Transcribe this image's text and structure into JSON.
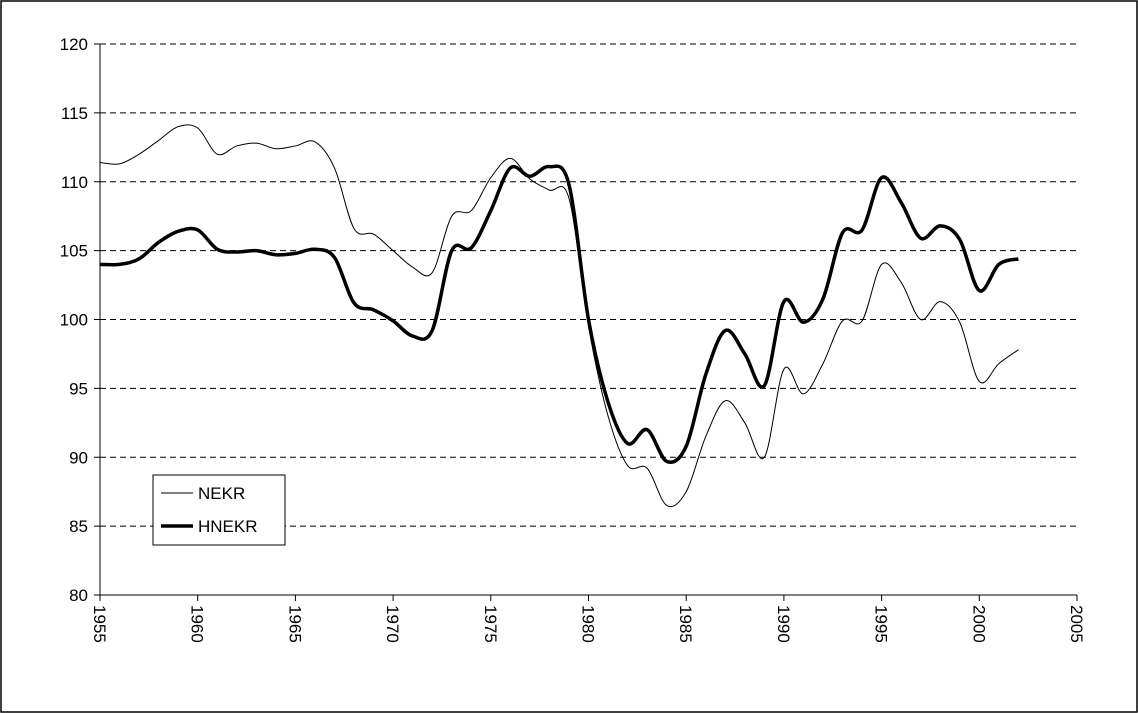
{
  "chart_data": {
    "type": "line",
    "x": [
      1955,
      1956,
      1957,
      1958,
      1959,
      1960,
      1961,
      1962,
      1963,
      1964,
      1965,
      1966,
      1967,
      1968,
      1969,
      1970,
      1971,
      1972,
      1973,
      1974,
      1975,
      1976,
      1977,
      1978,
      1979,
      1980,
      1981,
      1982,
      1983,
      1984,
      1985,
      1986,
      1987,
      1988,
      1989,
      1990,
      1991,
      1992,
      1993,
      1994,
      1995,
      1996,
      1997,
      1998,
      1999,
      2000,
      2001,
      2002
    ],
    "series": [
      {
        "name": "NEKR",
        "color": "#000000",
        "width": 1,
        "values": [
          111.4,
          111.3,
          112.0,
          113.0,
          114.0,
          113.9,
          112.0,
          112.6,
          112.8,
          112.4,
          112.6,
          112.9,
          111.0,
          106.6,
          106.2,
          105.0,
          103.8,
          103.4,
          107.5,
          107.9,
          110.3,
          111.7,
          110.2,
          109.4,
          108.8,
          99.5,
          93.0,
          89.4,
          89.2,
          86.5,
          87.5,
          91.5,
          94.1,
          92.5,
          90.0,
          96.4,
          94.6,
          96.8,
          99.9,
          99.9,
          104.0,
          102.7,
          100.0,
          101.3,
          99.8,
          95.5,
          96.8,
          97.8
        ]
      },
      {
        "name": "HNEKR",
        "color": "#000000",
        "width": 3.5,
        "values": [
          104.0,
          104.0,
          104.4,
          105.6,
          106.4,
          106.5,
          105.1,
          104.9,
          105.0,
          104.7,
          104.8,
          105.1,
          104.5,
          101.2,
          100.7,
          99.9,
          98.8,
          99.2,
          105.0,
          105.2,
          107.9,
          111.0,
          110.4,
          111.1,
          109.8,
          100.0,
          94.0,
          91.0,
          92.0,
          89.7,
          90.8,
          96.0,
          99.2,
          97.5,
          95.2,
          101.3,
          99.8,
          101.5,
          106.3,
          106.5,
          110.3,
          108.5,
          105.9,
          106.8,
          105.8,
          102.1,
          104.0,
          104.4
        ]
      }
    ],
    "xlim": [
      1955,
      2005
    ],
    "xticks": [
      1955,
      1960,
      1965,
      1970,
      1975,
      1980,
      1985,
      1990,
      1995,
      2000,
      2005
    ],
    "ylim": [
      80,
      120
    ],
    "yticks": [
      80,
      85,
      90,
      95,
      100,
      105,
      110,
      115,
      120
    ],
    "grid": true,
    "legend": "lower left"
  }
}
